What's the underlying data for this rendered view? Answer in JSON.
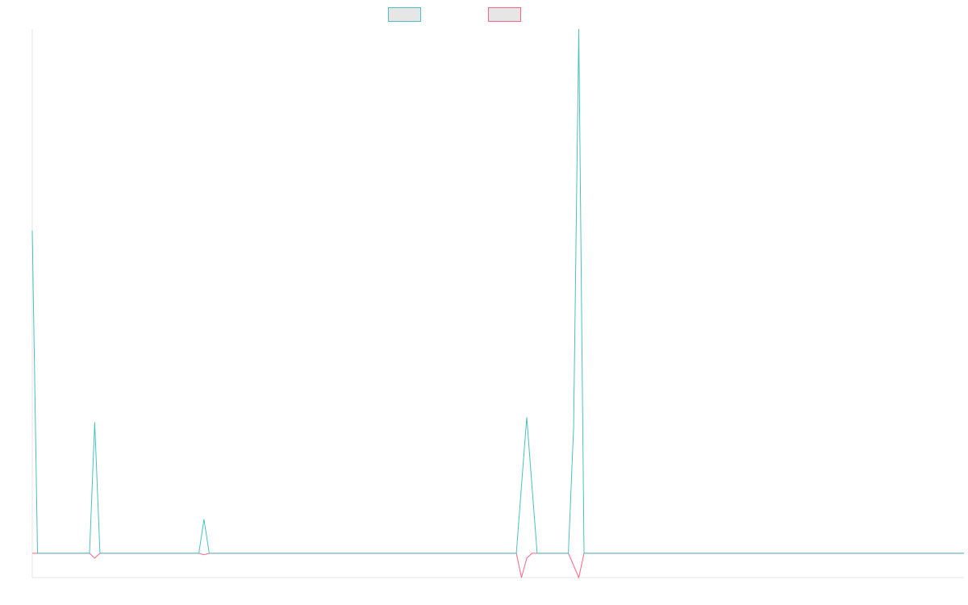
{
  "colors": {
    "series_a": "#4bc0c0",
    "series_a_fill": "#e6e6e6",
    "series_b": "#ff6384",
    "series_b_fill": "#e6e6e6",
    "axis": "#e5e5e5"
  },
  "legend": {
    "placement": "top-center",
    "items": [
      {
        "label": "",
        "color": "#4bc0c0"
      },
      {
        "label": "",
        "color": "#ff6384"
      }
    ]
  },
  "chart_data": {
    "type": "line",
    "title": "",
    "xlabel": "",
    "ylabel": "",
    "grid": false,
    "x_tick_labels_visible": false,
    "y_tick_labels_visible": false,
    "point_count": 180,
    "ylim": [
      -5,
      108
    ],
    "series": [
      {
        "points": [
          [
            0,
            66.5
          ],
          [
            1,
            0
          ],
          [
            11,
            0
          ],
          [
            12,
            27
          ],
          [
            13,
            0
          ],
          [
            32,
            0
          ],
          [
            33,
            7
          ],
          [
            34,
            0
          ],
          [
            93,
            0
          ],
          [
            94,
            14
          ],
          [
            95,
            28
          ],
          [
            96,
            14
          ],
          [
            97,
            0
          ],
          [
            103,
            0
          ],
          [
            104,
            26
          ],
          [
            105,
            108
          ],
          [
            106,
            0
          ],
          [
            179,
            0
          ]
        ]
      },
      {
        "points": [
          [
            0,
            0
          ],
          [
            11,
            0
          ],
          [
            12,
            -1
          ],
          [
            13,
            0
          ],
          [
            32,
            0
          ],
          [
            33,
            -0.3
          ],
          [
            34,
            0
          ],
          [
            93,
            0
          ],
          [
            94,
            -5
          ],
          [
            95,
            -1
          ],
          [
            96,
            0
          ],
          [
            103,
            0
          ],
          [
            104,
            -2.5
          ],
          [
            105,
            -5
          ],
          [
            106,
            0
          ],
          [
            179,
            0
          ]
        ]
      }
    ]
  }
}
